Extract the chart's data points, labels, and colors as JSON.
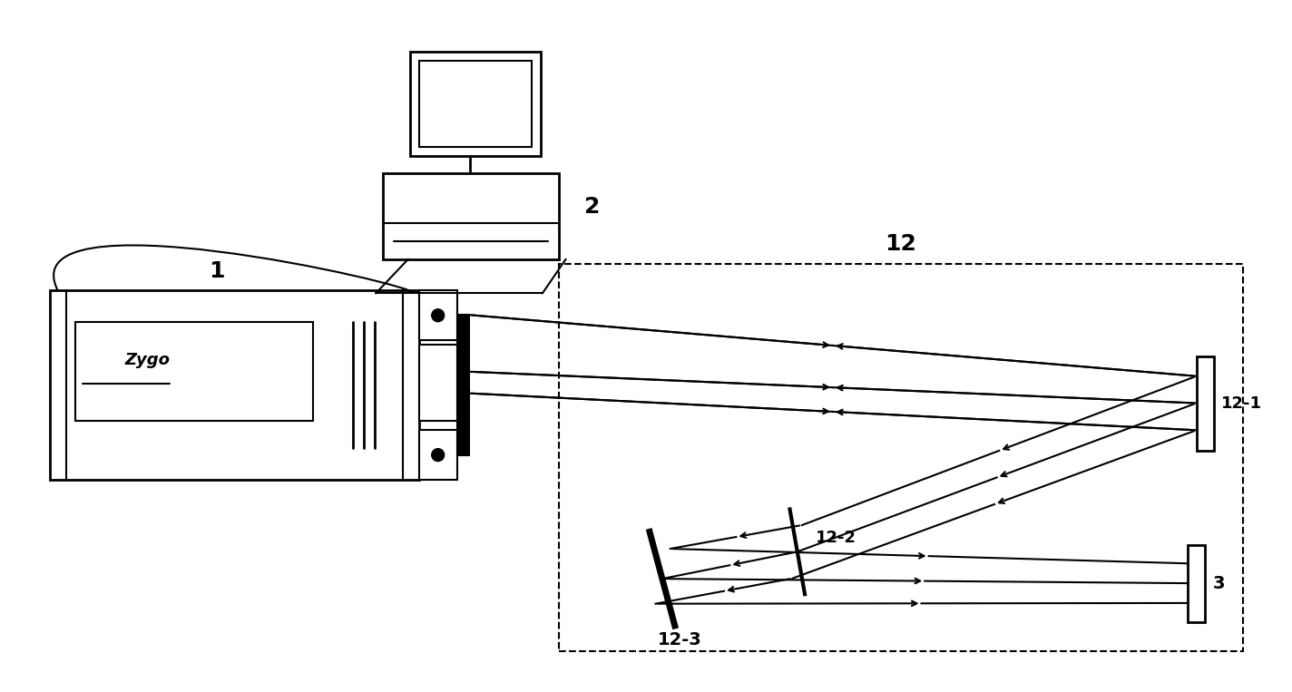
{
  "bg_color": "#ffffff",
  "lc": "#000000",
  "lw": 1.5,
  "lw_thick": 2.0,
  "lw_thin": 1.0,
  "fig_width": 14.24,
  "fig_height": 7.63,
  "labels": {
    "zygo": "Zygo",
    "l1": "1",
    "l2": "2",
    "l12": "12",
    "l12_1": "12-1",
    "l12_2": "12-2",
    "l12_3": "12-3",
    "l3": "3"
  }
}
